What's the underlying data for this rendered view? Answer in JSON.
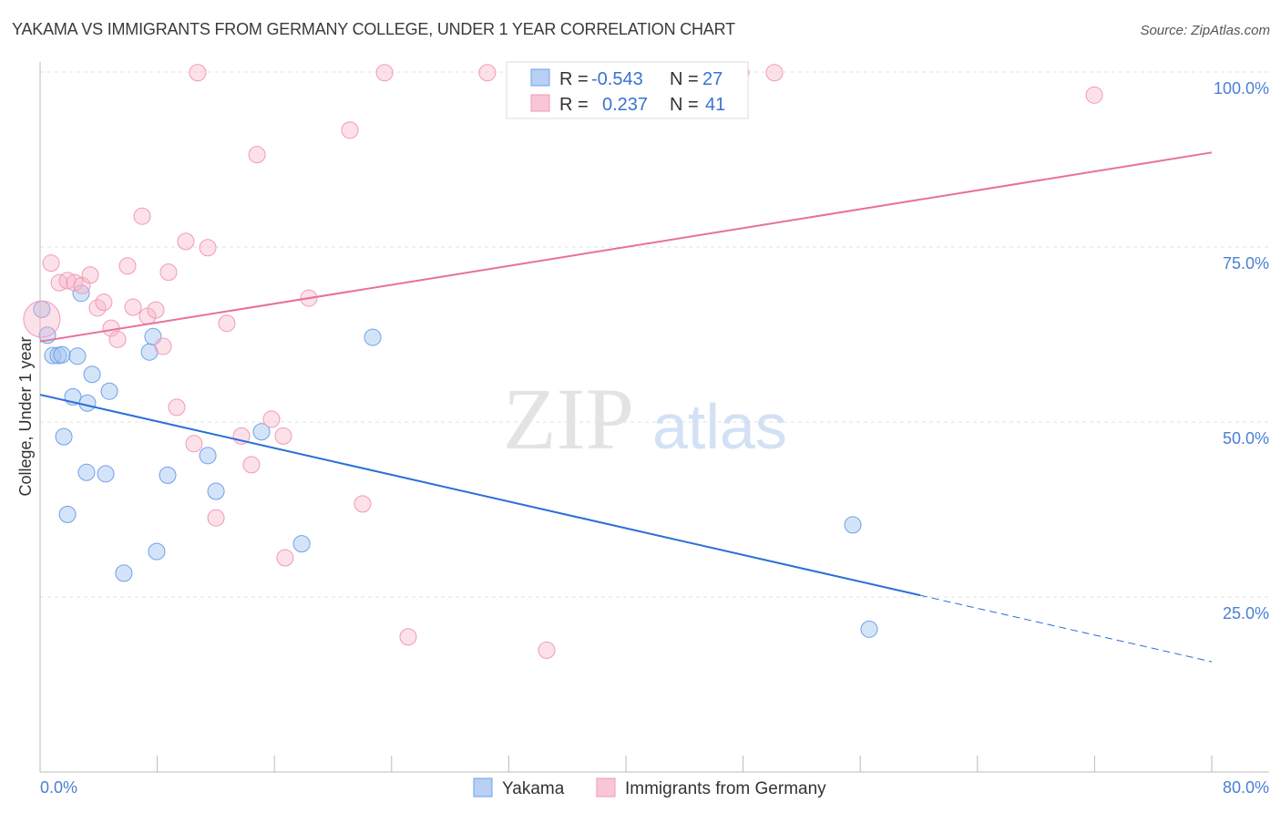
{
  "title": "YAKAMA VS IMMIGRANTS FROM GERMANY COLLEGE, UNDER 1 YEAR CORRELATION CHART",
  "source": "Source: ZipAtlas.com",
  "watermark": {
    "zip": "ZIP",
    "atlas": "atlas"
  },
  "legend": {
    "r_label": "R =",
    "n_label": "N =",
    "rows": [
      {
        "r": "-0.543",
        "n": "27"
      },
      {
        "r": "0.237",
        "n": "41"
      }
    ]
  },
  "chart_data": {
    "type": "scatter",
    "title": "YAKAMA VS IMMIGRANTS FROM GERMANY COLLEGE, UNDER 1 YEAR CORRELATION CHART",
    "xlabel": "",
    "ylabel": "College, Under 1 year",
    "xlim": [
      0,
      80
    ],
    "ylim": [
      0,
      100
    ],
    "x_tick_labels": [
      "0.0%",
      "80.0%"
    ],
    "y_tick_values": [
      25,
      50,
      75,
      100
    ],
    "y_tick_labels": [
      "25.0%",
      "50.0%",
      "75.0%",
      "100.0%"
    ],
    "grid": true,
    "legend_position": "bottom",
    "series": [
      {
        "name": "Yakama",
        "color": "#6fa0e8",
        "line_color": "#2a6fd6",
        "trend": {
          "x0": 0,
          "y0": 53.9,
          "x_solid_end": 60.1,
          "x1": 80,
          "y1": 15.75
        },
        "points": [
          [
            0.12,
            66.1
          ],
          [
            0.5,
            62.4
          ],
          [
            0.87,
            59.5
          ],
          [
            1.24,
            59.5
          ],
          [
            1.49,
            59.6
          ],
          [
            2.55,
            59.4
          ],
          [
            2.8,
            68.4
          ],
          [
            3.55,
            56.8
          ],
          [
            2.24,
            53.6
          ],
          [
            3.23,
            52.7
          ],
          [
            4.73,
            54.4
          ],
          [
            1.62,
            47.9
          ],
          [
            3.17,
            42.8
          ],
          [
            4.48,
            42.6
          ],
          [
            1.87,
            36.8
          ],
          [
            5.72,
            28.4
          ],
          [
            7.47,
            60.0
          ],
          [
            7.71,
            62.2
          ],
          [
            7.96,
            31.5
          ],
          [
            8.71,
            42.4
          ],
          [
            11.45,
            45.2
          ],
          [
            12.01,
            40.1
          ],
          [
            15.12,
            48.6
          ],
          [
            17.86,
            32.6
          ],
          [
            22.71,
            62.1
          ],
          [
            55.49,
            35.3
          ],
          [
            56.61,
            20.4
          ]
        ]
      },
      {
        "name": "Immigrants from Germany",
        "color": "#f29ab5",
        "line_color": "#e8709a",
        "trend": {
          "x0": 0,
          "y0": 61.5,
          "x_solid_end": 80,
          "x1": 80,
          "y1": 88.5
        },
        "points": [
          [
            0.12,
            64.7
          ],
          [
            0.75,
            72.7
          ],
          [
            1.31,
            69.9
          ],
          [
            1.87,
            70.2
          ],
          [
            2.36,
            69.9
          ],
          [
            2.86,
            69.5
          ],
          [
            3.42,
            71.0
          ],
          [
            3.92,
            66.3
          ],
          [
            4.35,
            67.1
          ],
          [
            4.85,
            63.4
          ],
          [
            5.29,
            61.8
          ],
          [
            5.97,
            72.3
          ],
          [
            6.35,
            66.4
          ],
          [
            6.97,
            79.4
          ],
          [
            7.34,
            65.1
          ],
          [
            7.9,
            66.0
          ],
          [
            8.4,
            60.8
          ],
          [
            8.77,
            71.4
          ],
          [
            9.33,
            52.1
          ],
          [
            9.95,
            75.8
          ],
          [
            10.51,
            46.9
          ],
          [
            10.76,
            99.9
          ],
          [
            11.45,
            74.9
          ],
          [
            12.01,
            36.3
          ],
          [
            12.75,
            64.1
          ],
          [
            13.75,
            48.0
          ],
          [
            14.43,
            43.9
          ],
          [
            14.81,
            88.2
          ],
          [
            15.8,
            50.4
          ],
          [
            16.61,
            48.0
          ],
          [
            16.73,
            30.6
          ],
          [
            18.35,
            67.7
          ],
          [
            21.15,
            91.7
          ],
          [
            22.02,
            38.3
          ],
          [
            23.52,
            99.9
          ],
          [
            25.13,
            19.3
          ],
          [
            30.54,
            99.9
          ],
          [
            34.59,
            17.4
          ],
          [
            47.84,
            99.9
          ],
          [
            50.14,
            99.9
          ],
          [
            71.98,
            96.7
          ]
        ]
      }
    ]
  }
}
